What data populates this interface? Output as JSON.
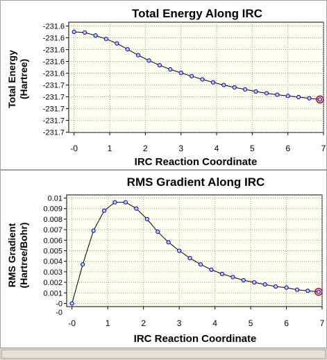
{
  "colors": {
    "plot_bg": "#fffff0",
    "grid": "#9a9a9a",
    "line": "#000000",
    "marker_fill": "#c8c8ff",
    "marker_stroke": "#0000cc",
    "highlight": "#cc0000"
  },
  "chart_data": [
    {
      "type": "line",
      "title": "Total Energy Along IRC",
      "xlabel": "IRC Reaction Coordinate",
      "ylabel_lines": [
        "Total Energy",
        "(Hartree)"
      ],
      "xlim": [
        -0.15,
        7.0
      ],
      "ylim": [
        -231.7705,
        -231.5835
      ],
      "xticks": [
        0,
        1,
        2,
        3,
        4,
        5,
        6,
        7
      ],
      "xtick_labels": [
        "-0",
        "1",
        "2",
        "3",
        "4",
        "5",
        "6",
        "7"
      ],
      "yticks": [
        -231.59,
        -231.61,
        -231.63,
        -231.65,
        -231.67,
        -231.69,
        -231.71,
        -231.73,
        -231.75,
        -231.77
      ],
      "ytick_labels": [
        "-231.6",
        "-231.6",
        "-231.6",
        "-231.6",
        "-231.6",
        "-231.7",
        "-231.7",
        "-231.7",
        "-231.7",
        "-231.7"
      ],
      "grid": true,
      "x": [
        0,
        0.3,
        0.6,
        0.9,
        1.2,
        1.5,
        1.8,
        2.1,
        2.4,
        2.7,
        3.0,
        3.3,
        3.6,
        3.9,
        4.2,
        4.5,
        4.8,
        5.1,
        5.4,
        5.7,
        6.0,
        6.3,
        6.6,
        6.9
      ],
      "y": [
        -231.6,
        -231.601,
        -231.606,
        -231.612,
        -231.6195,
        -231.6295,
        -231.6395,
        -231.6485,
        -231.6565,
        -231.6635,
        -231.6695,
        -231.675,
        -231.6805,
        -231.6855,
        -231.69,
        -231.694,
        -231.6975,
        -231.701,
        -231.704,
        -231.7065,
        -231.7085,
        -231.7105,
        -231.7125,
        -231.7145
      ],
      "highlight_index": 23
    },
    {
      "type": "line",
      "title": "RMS Gradient Along IRC",
      "xlabel": "IRC Reaction Coordinate",
      "ylabel_lines": [
        "RMS Gradient",
        "(Hartree/Bohr)"
      ],
      "xlim": [
        -0.15,
        7.0
      ],
      "ylim": [
        -0.0003,
        0.0103
      ],
      "xticks": [
        0,
        1,
        2,
        3,
        4,
        5,
        6,
        7
      ],
      "xtick_labels": [
        "-0",
        "1",
        "2",
        "3",
        "4",
        "5",
        "6",
        "7"
      ],
      "yticks": [
        0.01,
        0.009,
        0.008,
        0.007,
        0.006,
        0.005,
        0.004,
        0.003,
        0.002,
        0.001,
        0.0
      ],
      "ytick_labels": [
        "0.01",
        "0.009",
        "0.008",
        "0.007",
        "0.006",
        "0.005",
        "0.004",
        "0.003",
        "0.002",
        "0.001",
        "-0"
      ],
      "ytick_extra_label": "-0",
      "grid": true,
      "x": [
        0,
        0.3,
        0.6,
        0.9,
        1.2,
        1.5,
        1.8,
        2.1,
        2.4,
        2.7,
        3.0,
        3.3,
        3.6,
        3.9,
        4.2,
        4.5,
        4.8,
        5.1,
        5.4,
        5.7,
        6.0,
        6.3,
        6.6,
        6.9
      ],
      "y": [
        0.0,
        0.0037,
        0.0069,
        0.0088,
        0.0096,
        0.0096,
        0.009,
        0.008,
        0.0068,
        0.0058,
        0.005,
        0.0043,
        0.0037,
        0.0032,
        0.0028,
        0.0025,
        0.0022,
        0.002,
        0.0018,
        0.0016,
        0.0015,
        0.0013,
        0.0012,
        0.0011
      ],
      "highlight_index": 23
    }
  ]
}
